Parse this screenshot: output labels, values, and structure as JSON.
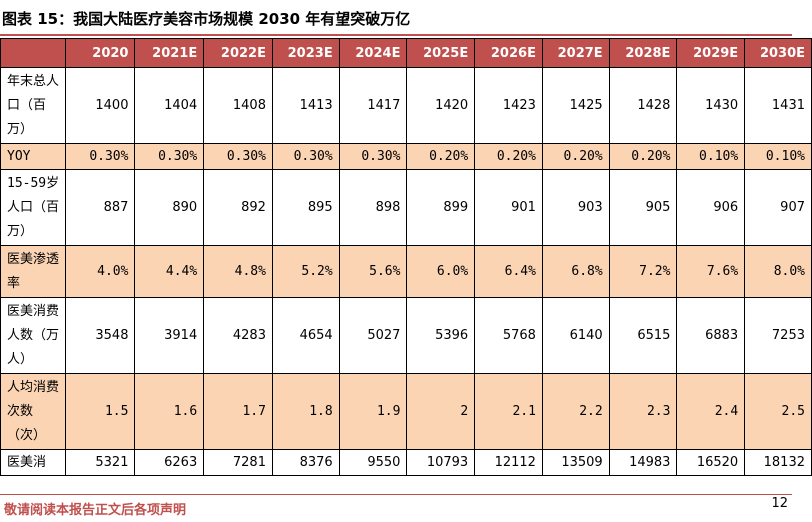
{
  "title": "图表 15：我国大陆医疗美容市场规模 2030 年有望突破万亿",
  "columns": [
    "2020",
    "2021E",
    "2022E",
    "2023E",
    "2024E",
    "2025E",
    "2026E",
    "2027E",
    "2028E",
    "2029E",
    "2030E"
  ],
  "rows": [
    {
      "label": "年末总人口（百万）",
      "values": [
        "1400",
        "1404",
        "1408",
        "1413",
        "1417",
        "1420",
        "1423",
        "1425",
        "1428",
        "1430",
        "1431"
      ]
    },
    {
      "label": "YOY",
      "values": [
        "0.30%",
        "0.30%",
        "0.30%",
        "0.30%",
        "0.30%",
        "0.20%",
        "0.20%",
        "0.20%",
        "0.20%",
        "0.10%",
        "0.10%"
      ]
    },
    {
      "label": "15-59岁人口（百万）",
      "values": [
        "887",
        "890",
        "892",
        "895",
        "898",
        "899",
        "901",
        "903",
        "905",
        "906",
        "907"
      ]
    },
    {
      "label": "医美渗透率",
      "values": [
        "4.0%",
        "4.4%",
        "4.8%",
        "5.2%",
        "5.6%",
        "6.0%",
        "6.4%",
        "6.8%",
        "7.2%",
        "7.6%",
        "8.0%"
      ]
    },
    {
      "label": "医美消费人数（万人）",
      "values": [
        "3548",
        "3914",
        "4283",
        "4654",
        "5027",
        "5396",
        "5768",
        "6140",
        "6515",
        "6883",
        "7253"
      ]
    },
    {
      "label": "人均消费次数（次）",
      "values": [
        "1.5",
        "1.6",
        "1.7",
        "1.8",
        "1.9",
        "2",
        "2.1",
        "2.2",
        "2.3",
        "2.4",
        "2.5"
      ]
    },
    {
      "label": "医美消",
      "values": [
        "5321",
        "6263",
        "7281",
        "8376",
        "9550",
        "10793",
        "12112",
        "13509",
        "14983",
        "16520",
        "18132"
      ]
    }
  ],
  "footer": "敬请阅读本报告正文后各项声明",
  "page_number": "12",
  "colors": {
    "header_bg": "#c0504d",
    "highlight_row": "#fbd4b4",
    "footer_text": "#c0504d"
  }
}
